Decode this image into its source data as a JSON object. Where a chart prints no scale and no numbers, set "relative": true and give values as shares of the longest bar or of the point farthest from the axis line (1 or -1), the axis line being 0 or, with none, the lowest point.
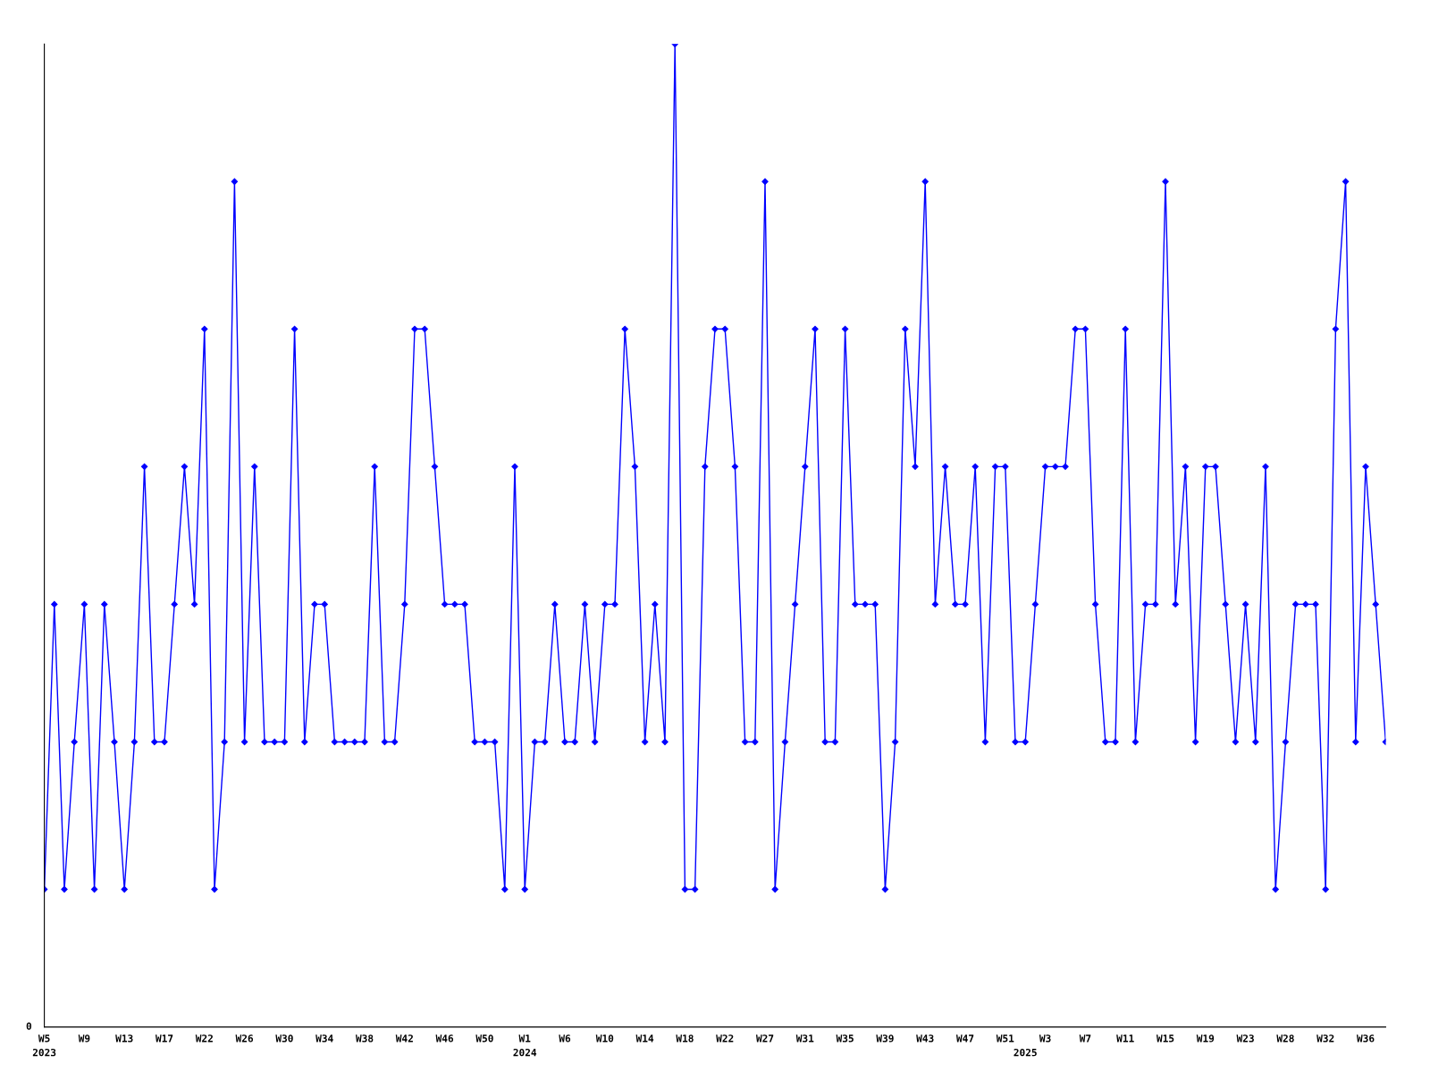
{
  "chart_data": {
    "type": "line",
    "relative": true,
    "color": "#0000ff",
    "marker": "diamond",
    "line_style": "solid",
    "grid": false,
    "legend": false,
    "annotations": [
      "0"
    ],
    "categories": [
      "W5\n2023",
      null,
      null,
      null,
      "W9",
      null,
      null,
      null,
      "W13",
      null,
      null,
      null,
      "W17",
      null,
      null,
      null,
      "W22",
      null,
      null,
      null,
      "W26",
      null,
      null,
      null,
      "W30",
      null,
      null,
      null,
      "W34",
      null,
      null,
      null,
      "W38",
      null,
      null,
      null,
      "W42",
      null,
      null,
      null,
      "W46",
      null,
      null,
      null,
      "W50",
      null,
      null,
      null,
      "W1\n2024",
      null,
      null,
      null,
      "W6",
      null,
      null,
      null,
      "W10",
      null,
      null,
      null,
      "W14",
      null,
      null,
      null,
      "W18",
      null,
      null,
      null,
      "W22",
      null,
      null,
      null,
      "W27",
      null,
      null,
      null,
      "W31",
      null,
      null,
      null,
      "W35",
      null,
      null,
      null,
      "W39",
      null,
      null,
      null,
      "W43",
      null,
      null,
      null,
      "W47",
      null,
      null,
      null,
      "W51",
      null,
      "\n2025",
      null,
      "W3",
      null,
      null,
      null,
      "W7",
      null,
      null,
      null,
      "W11",
      null,
      null,
      null,
      "W15",
      null,
      null,
      null,
      "W19",
      null,
      null,
      null,
      "W23",
      null,
      null,
      null,
      "W28",
      null,
      null,
      null,
      "W32",
      null,
      null,
      null,
      "W36",
      null,
      null
    ],
    "values": [
      0.14,
      0.43,
      0.14,
      0.29,
      0.43,
      0.14,
      0.43,
      0.29,
      0.14,
      0.29,
      0.57,
      0.29,
      0.29,
      0.43,
      0.57,
      0.43,
      0.71,
      0.14,
      0.29,
      0.86,
      0.29,
      0.57,
      0.29,
      0.29,
      0.29,
      0.71,
      0.29,
      0.43,
      0.43,
      0.29,
      0.29,
      0.29,
      0.29,
      0.57,
      0.29,
      0.29,
      0.43,
      0.71,
      0.71,
      0.57,
      0.43,
      0.43,
      0.43,
      0.29,
      0.29,
      0.29,
      0.14,
      0.57,
      0.14,
      0.29,
      0.29,
      0.43,
      0.29,
      0.29,
      0.43,
      0.29,
      0.43,
      0.43,
      0.71,
      0.57,
      0.29,
      0.43,
      0.29,
      1,
      0.14,
      0.14,
      0.57,
      0.71,
      0.71,
      0.57,
      0.29,
      0.29,
      0.86,
      0.14,
      0.29,
      0.43,
      0.57,
      0.71,
      0.29,
      0.29,
      0.71,
      0.43,
      0.43,
      0.43,
      0.14,
      0.29,
      0.71,
      0.57,
      0.86,
      0.43,
      0.57,
      0.43,
      0.43,
      0.57,
      0.29,
      0.57,
      0.57,
      0.29,
      0.29,
      0.43,
      0.57,
      0.57,
      0.57,
      0.71,
      0.71,
      0.43,
      0.29,
      0.29,
      0.71,
      0.29,
      0.43,
      0.43,
      0.86,
      0.43,
      0.57,
      0.29,
      0.57,
      0.57,
      0.43,
      0.29,
      0.43,
      0.29,
      0.57,
      0.14,
      0.29,
      0.43,
      0.43,
      0.43,
      0.14,
      0.71,
      0.86,
      0.29,
      0.57,
      0.43,
      0.29
    ]
  }
}
